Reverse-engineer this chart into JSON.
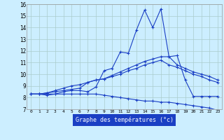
{
  "xlabel": "Graphe des températures (°c)",
  "bg_color": "#cceeff",
  "grid_color": "#aacccc",
  "line_color": "#1a3fc4",
  "xmin": -0.5,
  "xmax": 23.5,
  "ymin": 7,
  "ymax": 16,
  "xticks": [
    0,
    1,
    2,
    3,
    4,
    5,
    6,
    7,
    8,
    9,
    10,
    11,
    12,
    13,
    14,
    15,
    16,
    17,
    18,
    19,
    20,
    21,
    22,
    23
  ],
  "yticks": [
    7,
    8,
    9,
    10,
    11,
    12,
    13,
    14,
    15,
    16
  ],
  "series": [
    {
      "x": [
        0,
        1,
        2,
        3,
        4,
        5,
        6,
        7,
        8,
        9,
        10,
        11,
        12,
        13,
        14,
        15,
        16,
        17,
        18,
        19,
        20,
        21,
        22,
        23
      ],
      "y": [
        8.3,
        8.3,
        8.2,
        8.3,
        8.5,
        8.6,
        8.6,
        8.5,
        8.9,
        10.3,
        10.5,
        11.9,
        11.8,
        13.8,
        15.5,
        14.0,
        15.6,
        11.5,
        11.6,
        9.5,
        8.1,
        8.1,
        8.1,
        8.1
      ]
    },
    {
      "x": [
        0,
        1,
        2,
        3,
        4,
        5,
        6,
        7,
        8,
        9,
        10,
        11,
        12,
        13,
        14,
        15,
        16,
        17,
        18,
        19,
        20,
        21,
        22,
        23
      ],
      "y": [
        8.3,
        8.3,
        8.4,
        8.5,
        8.6,
        8.7,
        8.8,
        9.3,
        9.5,
        9.6,
        9.9,
        10.2,
        10.5,
        10.8,
        11.1,
        11.3,
        11.5,
        11.5,
        10.8,
        10.5,
        10.2,
        10.0,
        9.8,
        9.5
      ]
    },
    {
      "x": [
        0,
        1,
        2,
        3,
        4,
        5,
        6,
        7,
        8,
        9,
        10,
        11,
        12,
        13,
        14,
        15,
        16,
        17,
        18,
        19,
        20,
        21,
        22,
        23
      ],
      "y": [
        8.3,
        8.3,
        8.4,
        8.6,
        8.8,
        9.0,
        9.1,
        9.3,
        9.5,
        9.6,
        9.8,
        10.0,
        10.3,
        10.5,
        10.8,
        11.0,
        11.2,
        10.8,
        10.6,
        10.3,
        10.0,
        9.8,
        9.5,
        9.3
      ]
    },
    {
      "x": [
        0,
        1,
        2,
        3,
        4,
        5,
        6,
        7,
        8,
        9,
        10,
        11,
        12,
        13,
        14,
        15,
        16,
        17,
        18,
        19,
        20,
        21,
        22,
        23
      ],
      "y": [
        8.3,
        8.3,
        8.3,
        8.3,
        8.3,
        8.3,
        8.3,
        8.3,
        8.3,
        8.2,
        8.1,
        8.0,
        7.9,
        7.8,
        7.7,
        7.7,
        7.6,
        7.6,
        7.5,
        7.4,
        7.3,
        7.2,
        7.1,
        6.9
      ]
    }
  ]
}
